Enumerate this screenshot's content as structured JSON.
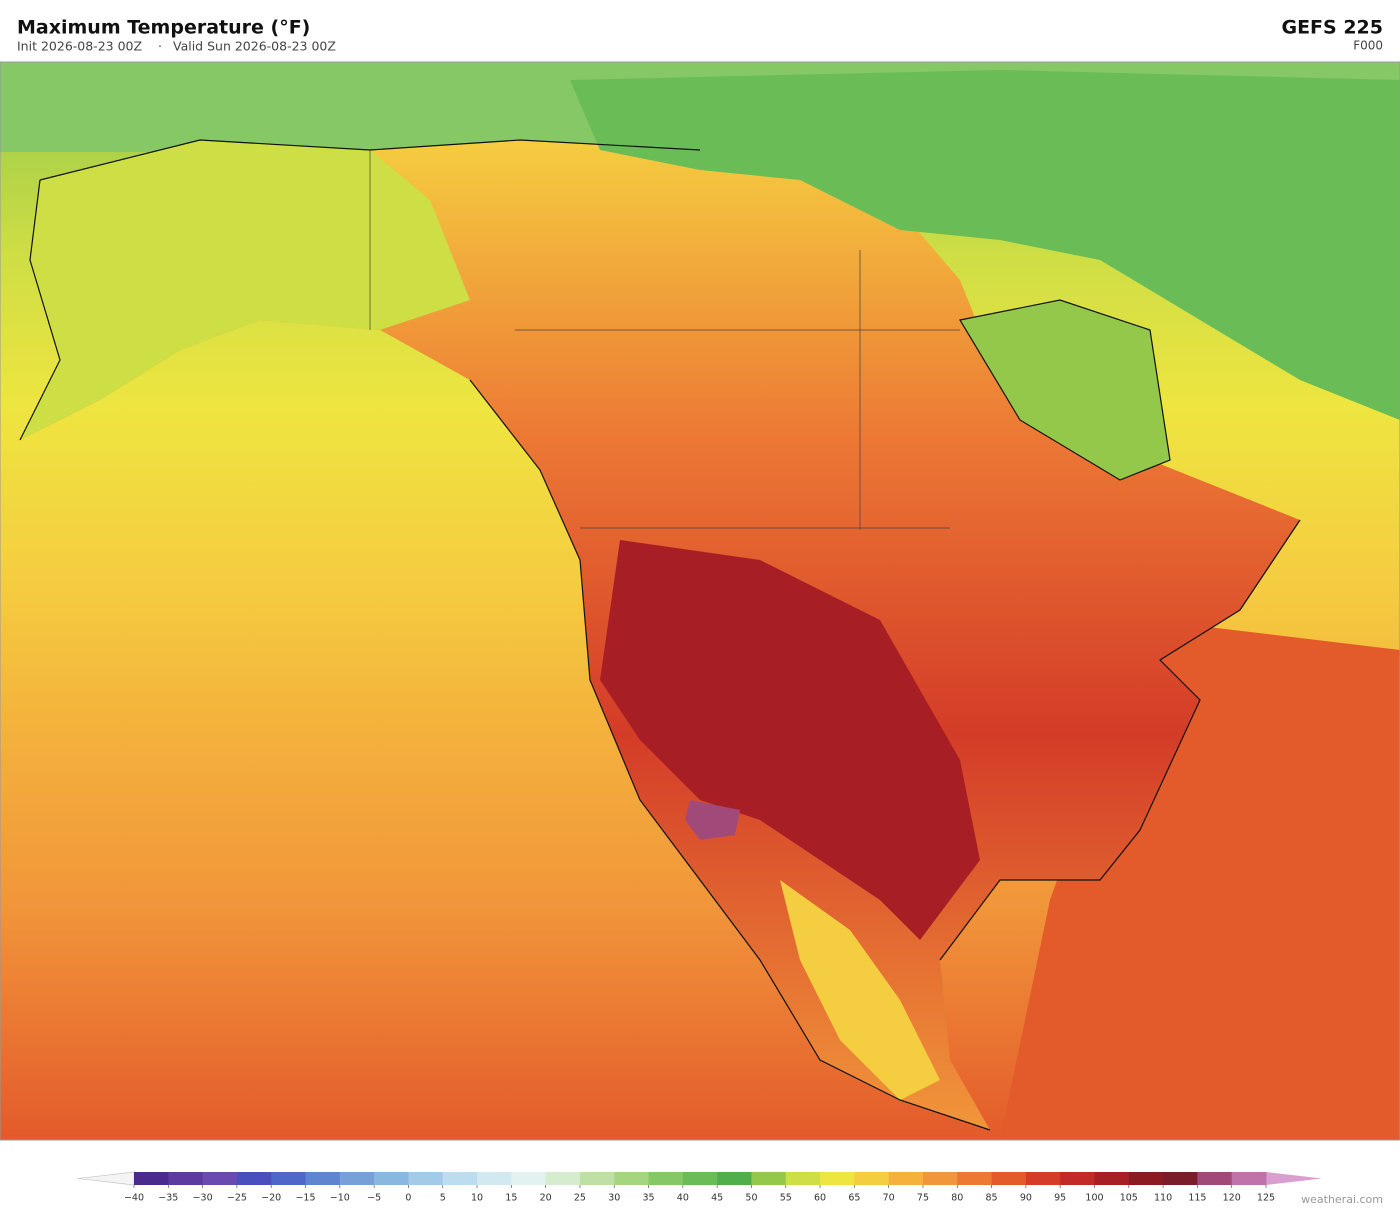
{
  "header": {
    "title": "Maximum Temperature  (°F)",
    "init": "Init 2026-08-23 00Z",
    "separator": "·",
    "valid": "Valid Sun 2026-08-23 00Z",
    "model": "GEFS  225",
    "forecast_hour": "F000"
  },
  "colorbar": {
    "ticks": [
      {
        "value": -40,
        "label": "−40"
      },
      {
        "value": -35,
        "label": "−35"
      },
      {
        "value": -30,
        "label": "−30"
      },
      {
        "value": -25,
        "label": "−25"
      },
      {
        "value": -20,
        "label": "−20"
      },
      {
        "value": -15,
        "label": "−15"
      },
      {
        "value": -10,
        "label": "−10"
      },
      {
        "value": -5,
        "label": "−5"
      },
      0,
      5,
      10,
      15,
      20,
      25,
      30,
      35,
      40,
      45,
      50,
      55,
      60,
      65,
      70,
      75,
      80,
      85,
      90,
      95,
      100,
      105,
      110,
      115,
      120,
      125
    ],
    "colors": [
      "#4b2a8e",
      "#5c3a9e",
      "#6a4aaf",
      "#4a4fc0",
      "#4f68c8",
      "#5f85d0",
      "#77a0d8",
      "#8ab7e0",
      "#a3cbe8",
      "#bcdcef",
      "#d3e9f2",
      "#e4f2ef",
      "#d6ecce",
      "#bfe0a4",
      "#a6d57f",
      "#86c766",
      "#6abc57",
      "#50ae4b",
      "#94c84a",
      "#cede45",
      "#eee540",
      "#f5cd40",
      "#f4b13c",
      "#f1963a",
      "#ec7834",
      "#e35a2b",
      "#d43c28",
      "#c12a27",
      "#a71f24",
      "#8c1a22",
      "#7b1c2a",
      "#a14a7a",
      "#c072aa"
    ],
    "under_color": "#f4f4f4",
    "over_color": "#d9a0cf"
  },
  "footer": {
    "credit": "weatherai.com"
  }
}
